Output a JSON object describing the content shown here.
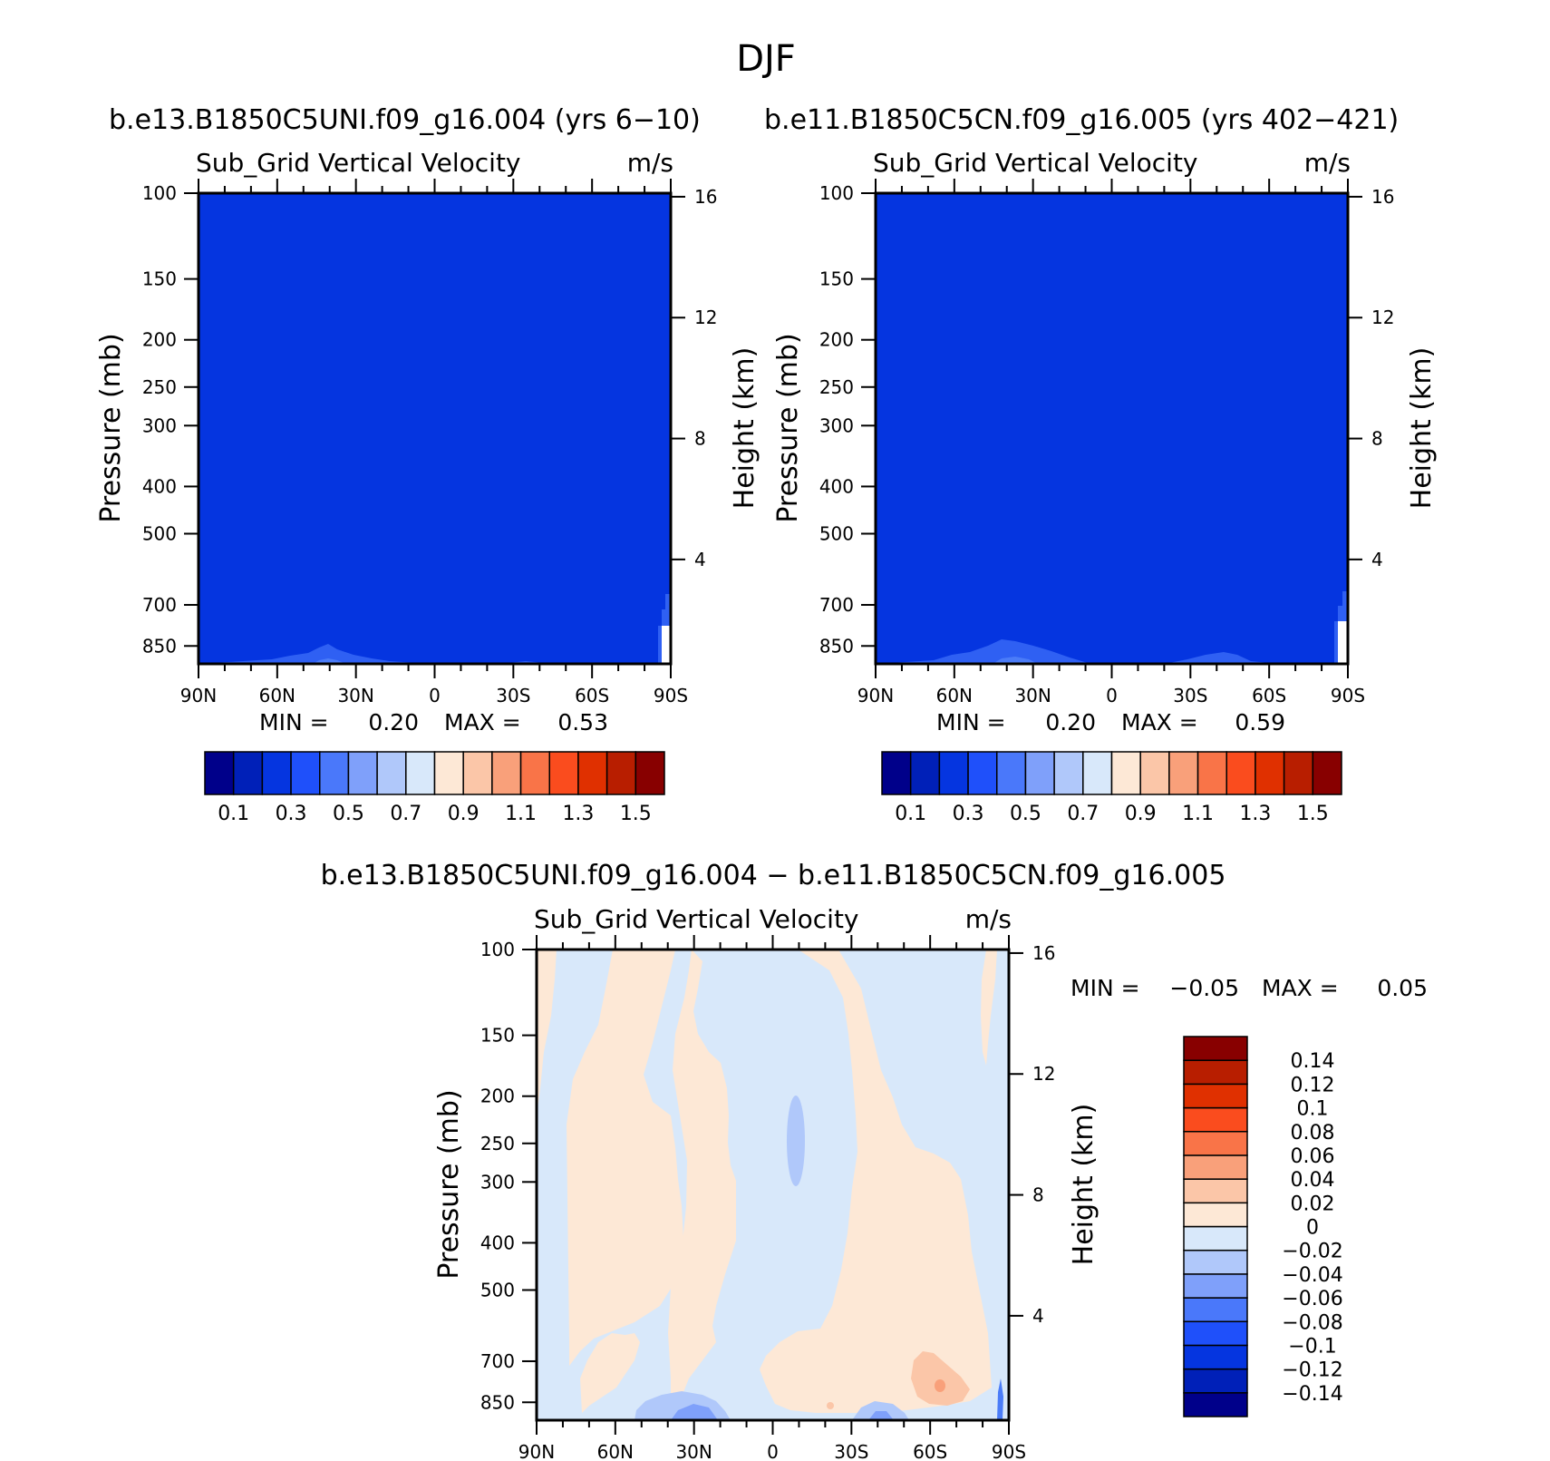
{
  "season": "DJF",
  "colors": {
    "frame": "#000000",
    "background": "#ffffff",
    "field_base": "#0535e0",
    "field_light": "#2f60f3",
    "field_lighter": "#4b7cf8"
  },
  "panels": [
    {
      "title": "b.e13.B1850C5UNI.f09_g16.004 (yrs 6-10)",
      "var_label": "Sub_Grid Vertical Velocity",
      "units": "m/s",
      "y_label": "Pressure (mb)",
      "y2_label": "Height (km)",
      "min_text": "MIN =",
      "min_value": "0.20",
      "max_text": "MAX =",
      "max_value": "0.53"
    },
    {
      "title": "b.e11.B1850C5CN.f09_g16.005 (yrs 402-421)",
      "var_label": "Sub_Grid Vertical Velocity",
      "units": "m/s",
      "y_label": "Pressure (mb)",
      "y2_label": "Height (km)",
      "min_text": "MIN =",
      "min_value": "0.20",
      "max_text": "MAX =",
      "max_value": "0.59"
    }
  ],
  "diff_panel": {
    "title": "b.e13.B1850C5UNI.f09_g16.004 - b.e11.B1850C5CN.f09_g16.005",
    "var_label": "Sub_Grid Vertical Velocity",
    "units": "m/s",
    "y_label": "Pressure (mb)",
    "y2_label": "Height (km)",
    "min_text": "MIN =",
    "min_value": "-0.05",
    "max_text": "MAX =",
    "max_value": "0.05"
  },
  "chart_data": [
    {
      "type": "heatmap",
      "title": "Sub_Grid Vertical Velocity",
      "units": "m/s",
      "x_ticks": [
        "90N",
        "60N",
        "30N",
        "0",
        "30S",
        "60S",
        "90S"
      ],
      "x_range": [
        90,
        -90
      ],
      "y_ticks": [
        100,
        150,
        200,
        250,
        300,
        400,
        500,
        700,
        850
      ],
      "y_range": [
        100,
        925
      ],
      "y2_ticks": [
        16,
        12,
        8,
        4
      ],
      "ylabel": "Pressure (mb)",
      "y2label": "Height (km)",
      "min": 0.2,
      "max": 0.53,
      "dominant_level": 0.2,
      "colorbar": {
        "orientation": "horizontal",
        "colors": [
          "#00008a",
          "#0020b8",
          "#0535e0",
          "#1f50fa",
          "#4a78fa",
          "#7fa0fa",
          "#b0c8fa",
          "#d8e8fa",
          "#fde8d6",
          "#fbc6a8",
          "#f9a07a",
          "#f97448",
          "#fa4c1e",
          "#e03000",
          "#b81e00",
          "#880000"
        ],
        "labels": [
          "0.1",
          "0.3",
          "0.5",
          "0.7",
          "0.9",
          "1.1",
          "1.3",
          "1.5"
        ]
      }
    },
    {
      "type": "heatmap",
      "title": "Sub_Grid Vertical Velocity",
      "units": "m/s",
      "x_ticks": [
        "90N",
        "60N",
        "30N",
        "0",
        "30S",
        "60S",
        "90S"
      ],
      "x_range": [
        90,
        -90
      ],
      "y_ticks": [
        100,
        150,
        200,
        250,
        300,
        400,
        500,
        700,
        850
      ],
      "y_range": [
        100,
        925
      ],
      "y2_ticks": [
        16,
        12,
        8,
        4
      ],
      "ylabel": "Pressure (mb)",
      "y2label": "Height (km)",
      "min": 0.2,
      "max": 0.59,
      "dominant_level": 0.2,
      "colorbar": {
        "orientation": "horizontal",
        "colors": [
          "#00008a",
          "#0020b8",
          "#0535e0",
          "#1f50fa",
          "#4a78fa",
          "#7fa0fa",
          "#b0c8fa",
          "#d8e8fa",
          "#fde8d6",
          "#fbc6a8",
          "#f9a07a",
          "#f97448",
          "#fa4c1e",
          "#e03000",
          "#b81e00",
          "#880000"
        ],
        "labels": [
          "0.1",
          "0.3",
          "0.5",
          "0.7",
          "0.9",
          "1.1",
          "1.3",
          "1.5"
        ]
      }
    },
    {
      "type": "heatmap",
      "title": "Sub_Grid Vertical Velocity",
      "units": "m/s",
      "x_ticks": [
        "90N",
        "60N",
        "30N",
        "0",
        "30S",
        "60S",
        "90S"
      ],
      "x_range": [
        90,
        -90
      ],
      "y_ticks": [
        100,
        150,
        200,
        250,
        300,
        400,
        500,
        700,
        850
      ],
      "y_range": [
        100,
        925
      ],
      "y2_ticks": [
        16,
        12,
        8,
        4
      ],
      "ylabel": "Pressure (mb)",
      "y2label": "Height (km)",
      "min": -0.05,
      "max": 0.05,
      "colorbar": {
        "orientation": "vertical",
        "colors": [
          "#00008a",
          "#0020b8",
          "#0535e0",
          "#1f50fa",
          "#4a78fa",
          "#7fa0fa",
          "#b0c8fa",
          "#d8e8fa",
          "#fde8d6",
          "#fbc6a8",
          "#f9a07a",
          "#f97448",
          "#fa4c1e",
          "#e03000",
          "#b81e00",
          "#880000"
        ],
        "labels": [
          "-0.14",
          "-0.12",
          "-0.1",
          "-0.08",
          "-0.06",
          "-0.04",
          "-0.02",
          "0",
          "0.02",
          "0.04",
          "0.06",
          "0.08",
          "0.1",
          "0.12",
          "0.14"
        ]
      }
    }
  ]
}
